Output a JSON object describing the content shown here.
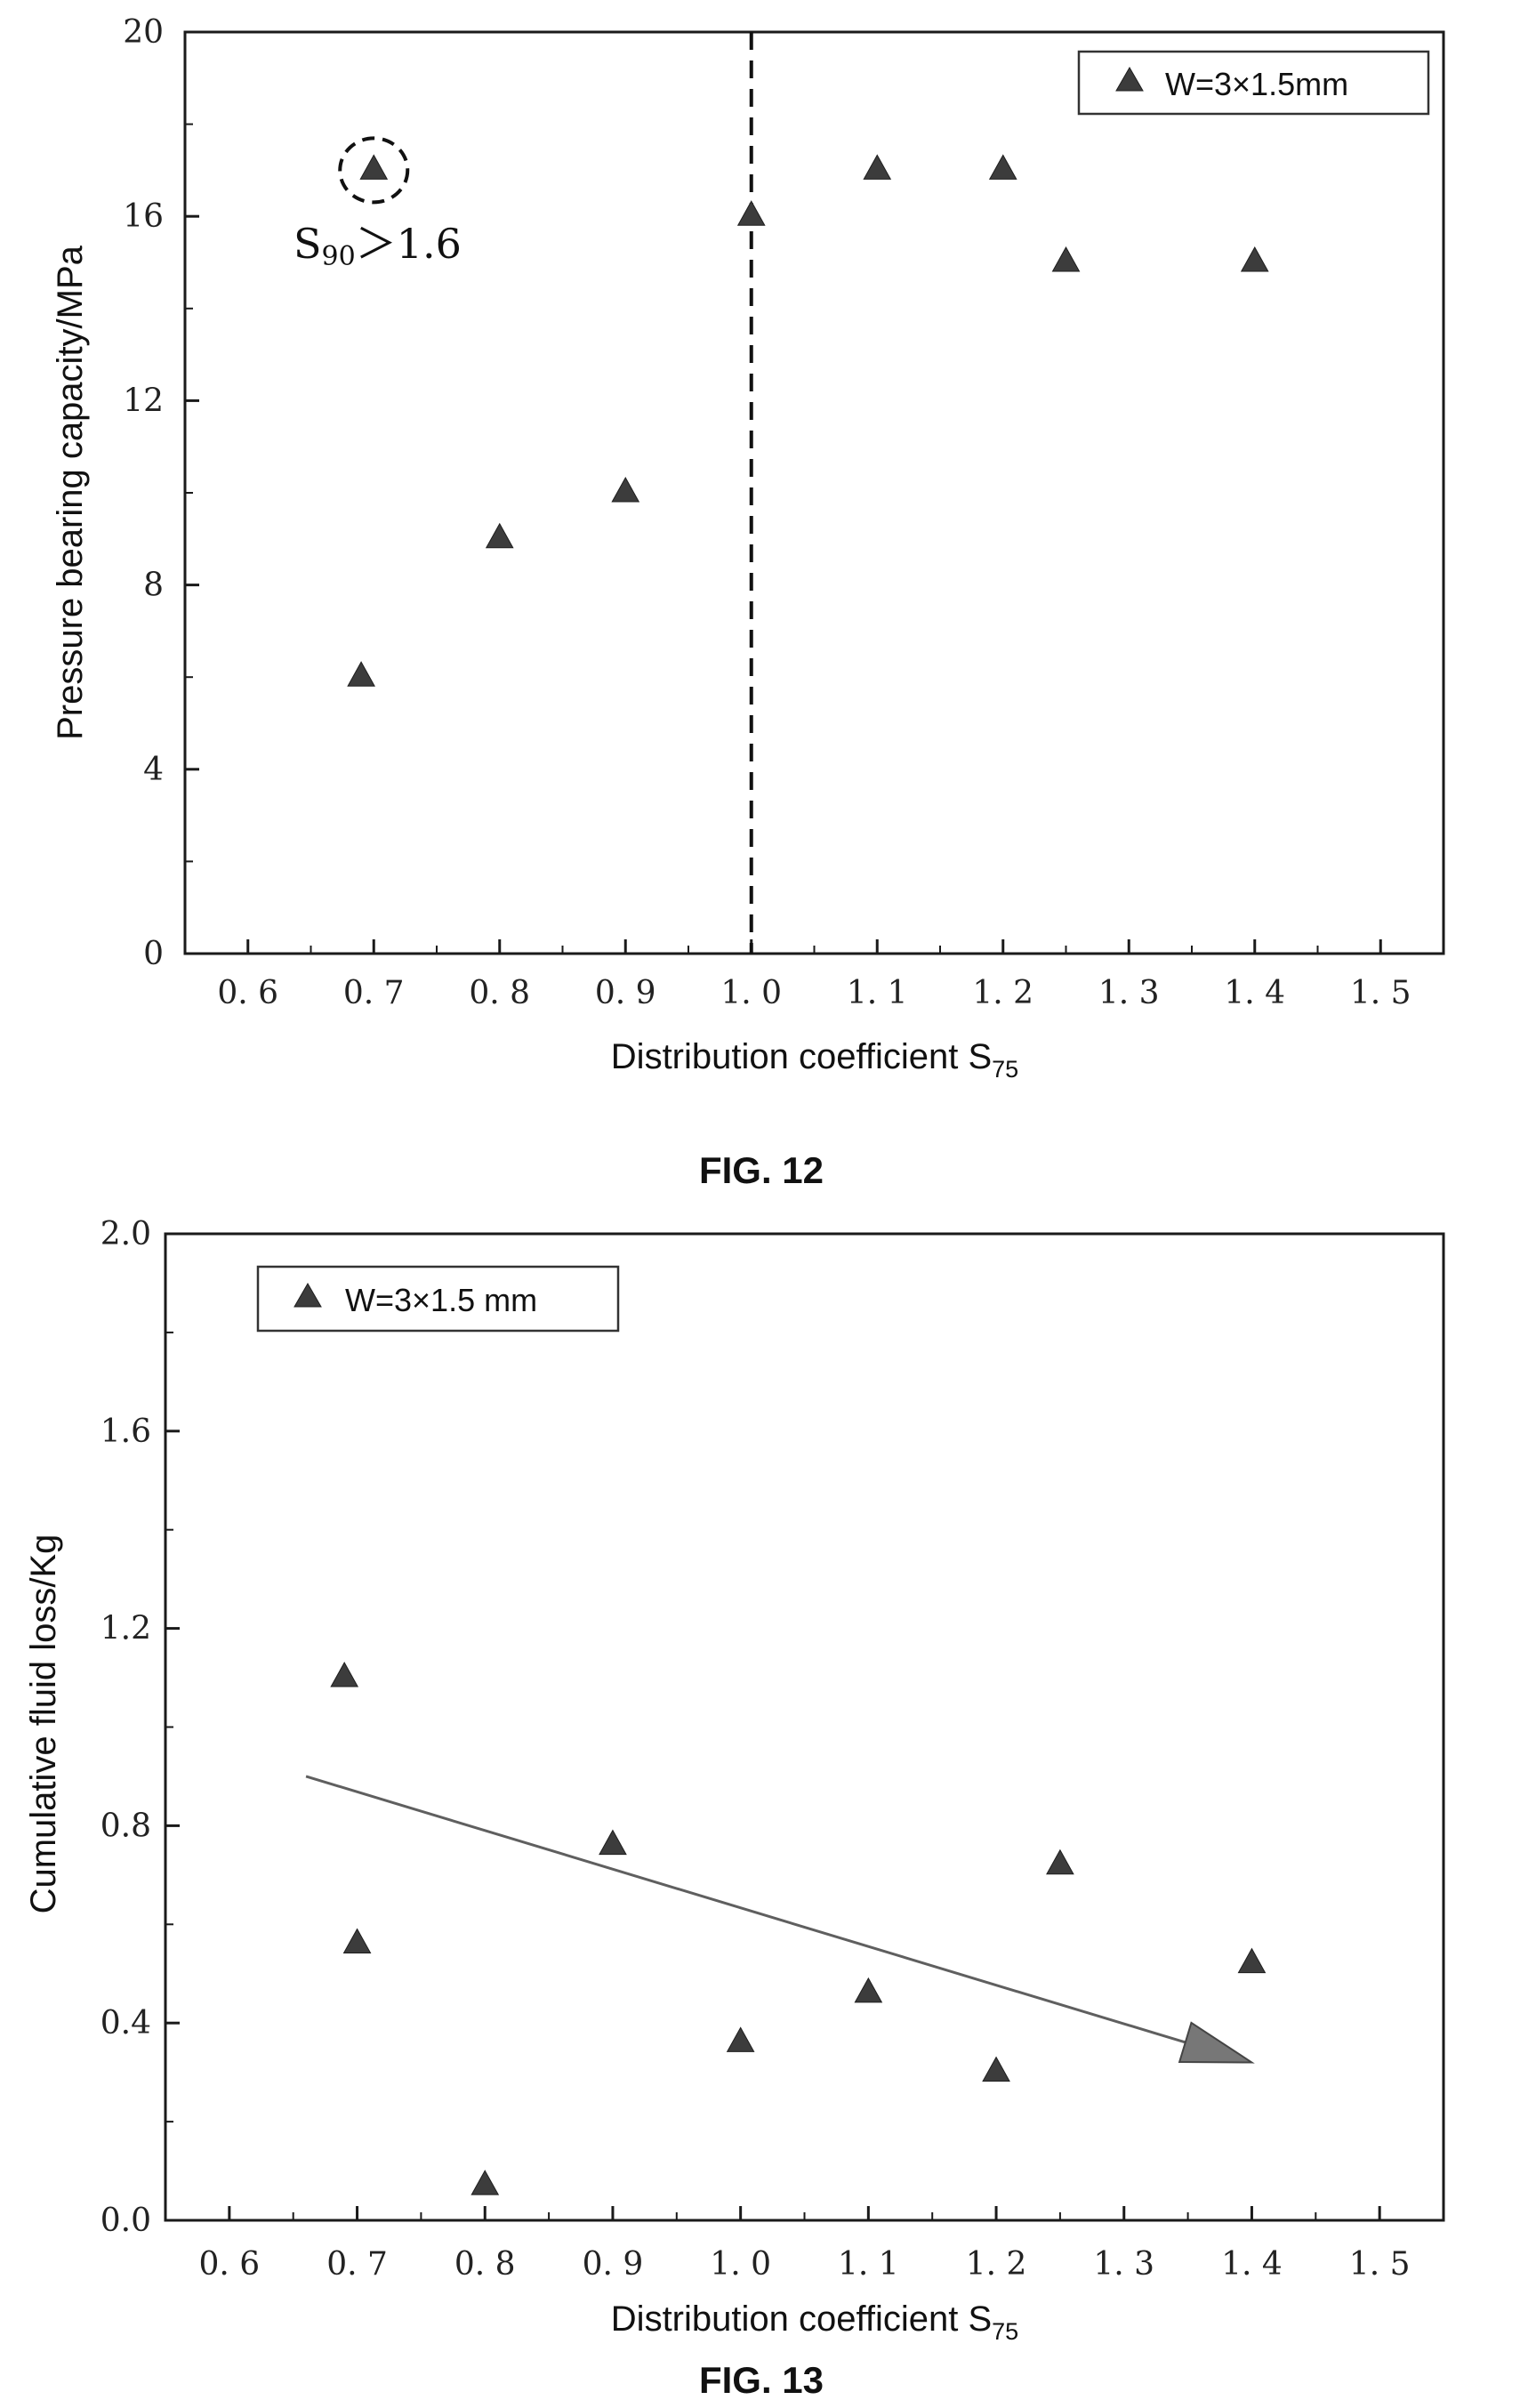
{
  "chart_data": [
    {
      "type": "scatter",
      "caption": "FIG. 12",
      "title": "",
      "xlabel": "Distribution coefficient S",
      "xlabel_sub": "75",
      "ylabel": "Pressure bearing capacity/MPa",
      "xlim": [
        0.55,
        1.55
      ],
      "ylim": [
        0,
        20
      ],
      "xticks": [
        "0.6",
        "0.7",
        "0.8",
        "0.9",
        "1.0",
        "1.1",
        "1.2",
        "1.3",
        "1.4",
        "1.5"
      ],
      "yticks": [
        "0",
        "4",
        "8",
        "12",
        "16",
        "20"
      ],
      "series": [
        {
          "name": "W=3×1.5mm",
          "marker": "triangle",
          "color": "#3c3c3c",
          "x": [
            0.69,
            0.7,
            0.8,
            0.9,
            1.0,
            1.1,
            1.2,
            1.25,
            1.4
          ],
          "y": [
            6,
            17,
            9,
            10,
            16,
            17,
            17,
            15,
            15
          ]
        }
      ],
      "reference_line": {
        "orientation": "vertical",
        "x": 1.0,
        "style": "dashed"
      },
      "annotation": {
        "text": "S",
        "sub": "90",
        "suffix": "＞1.6",
        "circled_point": {
          "x": 0.7,
          "y": 17
        }
      },
      "legend": "top-right",
      "grid": false
    },
    {
      "type": "scatter",
      "caption": "FIG. 13",
      "title": "",
      "xlabel": "Distribution coefficient S",
      "xlabel_sub": "75",
      "ylabel": "Cumulative fluid loss/Kg",
      "xlim": [
        0.55,
        1.55
      ],
      "ylim": [
        0.0,
        2.0
      ],
      "xticks": [
        "0.6",
        "0.7",
        "0.8",
        "0.9",
        "1.0",
        "1.1",
        "1.2",
        "1.3",
        "1.4",
        "1.5"
      ],
      "yticks": [
        "0.0",
        "0.4",
        "0.8",
        "1.2",
        "1.6",
        "2.0"
      ],
      "series": [
        {
          "name": "W=3×1.5 mm",
          "marker": "triangle",
          "color": "#3c3c3c",
          "x": [
            0.69,
            0.7,
            0.8,
            0.9,
            1.0,
            1.1,
            1.2,
            1.25,
            1.4
          ],
          "y": [
            1.1,
            0.56,
            0.07,
            0.76,
            0.36,
            0.46,
            0.3,
            0.72,
            0.52
          ]
        }
      ],
      "trend_arrow": {
        "x_start": 0.66,
        "y_start": 0.9,
        "x_end": 1.4,
        "y_end": 0.32
      },
      "legend": "top-left",
      "grid": false
    }
  ]
}
